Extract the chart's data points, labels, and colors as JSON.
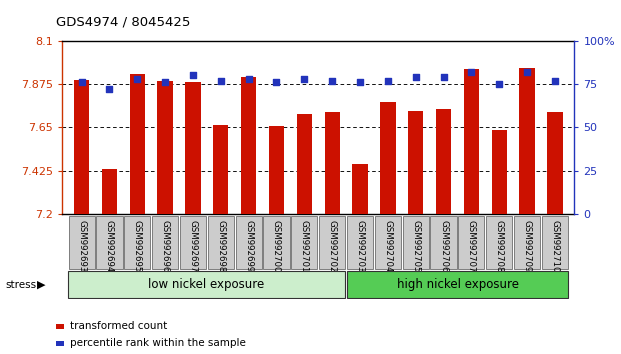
{
  "title": "GDS4974 / 8045425",
  "samples": [
    "GSM992693",
    "GSM992694",
    "GSM992695",
    "GSM992696",
    "GSM992697",
    "GSM992698",
    "GSM992699",
    "GSM992700",
    "GSM992701",
    "GSM992702",
    "GSM992703",
    "GSM992704",
    "GSM992705",
    "GSM992706",
    "GSM992707",
    "GSM992708",
    "GSM992709",
    "GSM992710"
  ],
  "bar_values": [
    7.895,
    7.435,
    7.925,
    7.89,
    7.885,
    7.665,
    7.91,
    7.655,
    7.72,
    7.73,
    7.46,
    7.78,
    7.735,
    7.745,
    7.955,
    7.635,
    7.96,
    7.73
  ],
  "percentile_values": [
    76,
    72,
    78,
    76,
    80,
    77,
    78,
    76,
    78,
    77,
    76,
    77,
    79,
    79,
    82,
    75,
    82,
    77
  ],
  "bar_color": "#cc1100",
  "dot_color": "#2233bb",
  "ymin": 7.2,
  "ymax": 8.1,
  "yticks": [
    7.2,
    7.425,
    7.65,
    7.875,
    8.1
  ],
  "y2min": 0,
  "y2max": 100,
  "y2ticks": [
    0,
    25,
    50,
    75,
    100
  ],
  "low_nickel_count": 10,
  "group1_label": "low nickel exposure",
  "group2_label": "high nickel exposure",
  "stress_label": "stress",
  "legend_bar": "transformed count",
  "legend_dot": "percentile rank within the sample",
  "group_bg1": "#cceecc",
  "group_bg2": "#55cc55",
  "tick_bg": "#cccccc"
}
